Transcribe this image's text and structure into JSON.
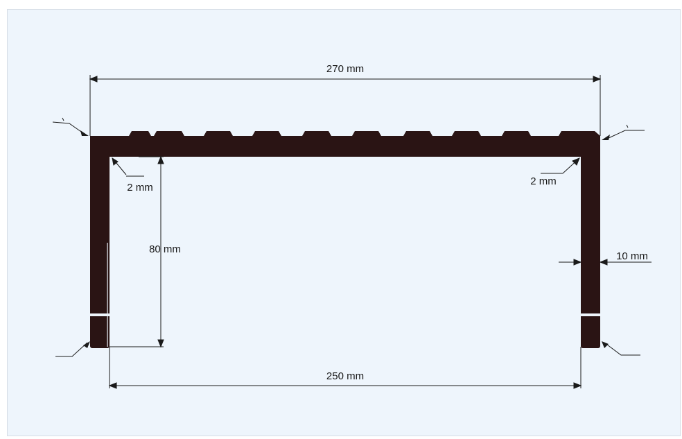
{
  "header": {
    "title": ""
  },
  "colors": {
    "profile": "#2a1414",
    "background": "#eef5fc",
    "dimension_line": "#1a1a1a",
    "title": "#2f5aa8"
  },
  "dimensions": {
    "outer_width": "270 mm",
    "inner_width": "250 mm",
    "leg_height": "80 mm",
    "wall_thickness": "10 mm",
    "radius_left": "2 mm",
    "radius_right": "2 mm"
  }
}
